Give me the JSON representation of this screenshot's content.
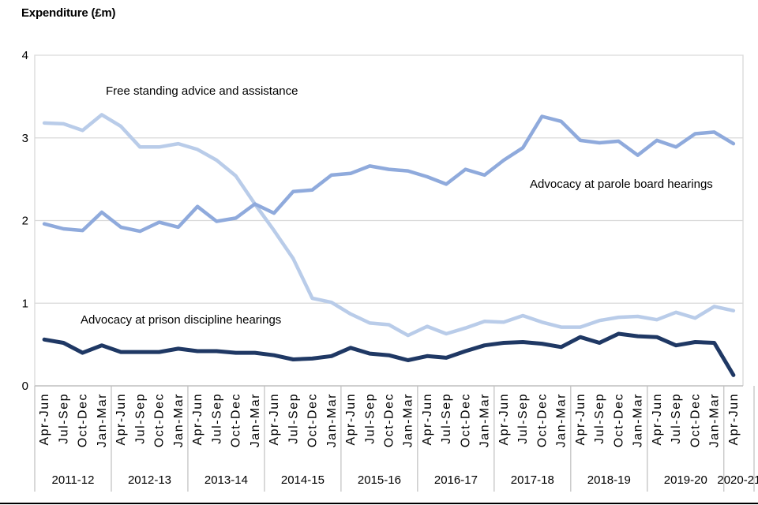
{
  "title": "Expenditure (£m)",
  "chart_data": {
    "type": "line",
    "title": "Expenditure (£m)",
    "xlabel": "",
    "ylabel": "Expenditure (£m)",
    "ylim": [
      0,
      4
    ],
    "yticks": [
      "0",
      "1",
      "2",
      "3",
      "4"
    ],
    "grid": "horizontal",
    "legend": "inline-labels",
    "quarter_labels": [
      "Apr-Jun",
      "Jul-Sep",
      "Oct-Dec",
      "Jan-Mar",
      "Apr-Jun",
      "Jul-Sep",
      "Oct-Dec",
      "Jan-Mar",
      "Apr-Jun",
      "Jul-Sep",
      "Oct-Dec",
      "Jan-Mar",
      "Apr-Jun",
      "Jul-Sep",
      "Oct-Dec",
      "Jan-Mar",
      "Apr-Jun",
      "Jul-Sep",
      "Oct-Dec",
      "Jan-Mar",
      "Apr-Jun",
      "Jul-Sep",
      "Oct-Dec",
      "Jan-Mar",
      "Apr-Jun",
      "Jul-Sep",
      "Oct-Dec",
      "Jan-Mar",
      "Apr-Jun",
      "Jul-Sep",
      "Oct-Dec",
      "Jan-Mar",
      "Apr-Jun",
      "Jul-Sep",
      "Oct-Dec",
      "Jan-Mar",
      "Apr-Jun"
    ],
    "year_labels": [
      "2011-12",
      "2012-13",
      "2013-14",
      "2014-15",
      "2015-16",
      "2016-17",
      "2017-18",
      "2018-19",
      "2019-20",
      "2020-21"
    ],
    "quarters_per_year": [
      4,
      4,
      4,
      4,
      4,
      4,
      4,
      4,
      4,
      1
    ],
    "series": [
      {
        "name": "Free standing advice and assistance",
        "color": "#b9cce9",
        "values": [
          3.18,
          3.17,
          3.09,
          3.28,
          3.14,
          2.89,
          2.89,
          2.93,
          2.86,
          2.73,
          2.54,
          2.2,
          1.88,
          1.54,
          1.06,
          1.01,
          0.87,
          0.76,
          0.74,
          0.61,
          0.72,
          0.63,
          0.7,
          0.78,
          0.77,
          0.85,
          0.77,
          0.71,
          0.71,
          0.79,
          0.83,
          0.84,
          0.8,
          0.89,
          0.82,
          0.96,
          0.91
        ]
      },
      {
        "name": "Advocacy at parole board hearings",
        "color": "#8faadc",
        "values": [
          1.96,
          1.9,
          1.88,
          2.1,
          1.92,
          1.87,
          1.98,
          1.92,
          2.17,
          1.99,
          2.03,
          2.2,
          2.09,
          2.35,
          2.37,
          2.55,
          2.57,
          2.66,
          2.62,
          2.6,
          2.53,
          2.44,
          2.62,
          2.55,
          2.73,
          2.88,
          3.26,
          3.2,
          2.97,
          2.94,
          2.96,
          2.79,
          2.97,
          2.89,
          3.05,
          3.07,
          2.93
        ]
      },
      {
        "name": "Advocacy at prison discipline hearings",
        "color": "#1f3864",
        "values": [
          0.56,
          0.52,
          0.4,
          0.49,
          0.41,
          0.41,
          0.41,
          0.45,
          0.42,
          0.42,
          0.4,
          0.4,
          0.37,
          0.32,
          0.33,
          0.36,
          0.46,
          0.39,
          0.37,
          0.31,
          0.36,
          0.34,
          0.42,
          0.49,
          0.52,
          0.53,
          0.51,
          0.47,
          0.59,
          0.52,
          0.63,
          0.6,
          0.59,
          0.49,
          0.53,
          0.52,
          0.13
        ]
      }
    ],
    "style": {
      "gridline_color": "#d9d9d9",
      "axis_color": "#bfbfbf",
      "text_color": "#000000"
    }
  }
}
